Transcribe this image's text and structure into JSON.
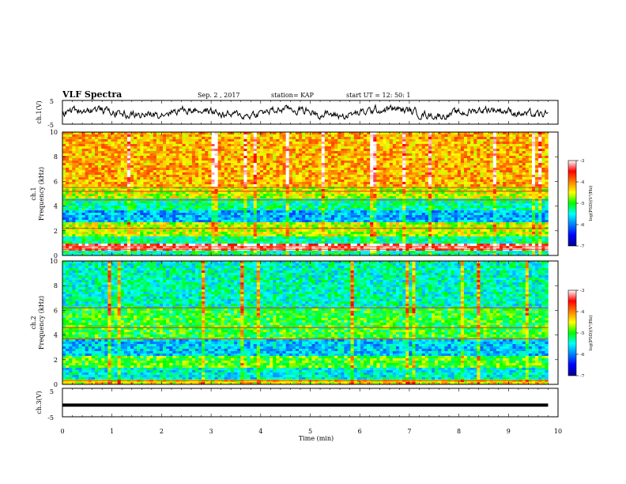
{
  "header": {
    "title": "VLF Spectra",
    "date": "Sep. 2 , 2017",
    "station": "station= KAP",
    "start": "start  UT =   12: 50: 1"
  },
  "chart_data": [
    {
      "type": "line",
      "panel": "ch1-waveform",
      "ylabel": "ch.1(V)",
      "ylim": [
        -5,
        5
      ],
      "yticks": [
        "5",
        "-5"
      ],
      "xlim": [
        0,
        10
      ],
      "series_color": "#000000",
      "description_values": "noisy waveform centred near 0 V, amplitude about ±2.5 V, ending at 9.8 min"
    },
    {
      "type": "heatmap",
      "panel": "ch1-spectrogram",
      "ylabel": "ch.1\nFrequency (kHz)",
      "ylabel_lines": [
        "ch.1",
        "Frequency  (kHz)"
      ],
      "ylim": [
        0,
        10
      ],
      "yticks": [
        "0",
        "2",
        "4",
        "6",
        "8",
        "10"
      ],
      "xlim": [
        0,
        10
      ],
      "data_end_min": 9.8,
      "band_levels": [
        {
          "f": [
            0,
            0.4
          ],
          "level": -5.3
        },
        {
          "f": [
            0.4,
            0.9
          ],
          "level": -3.3
        },
        {
          "f": [
            0.9,
            1.6
          ],
          "level": -5.3
        },
        {
          "f": [
            1.6,
            2.6
          ],
          "level": -4.6
        },
        {
          "f": [
            2.6,
            3.6
          ],
          "level": -5.8
        },
        {
          "f": [
            3.6,
            4.6
          ],
          "level": -5.3
        },
        {
          "f": [
            4.6,
            5.5
          ],
          "level": -4.6
        },
        {
          "f": [
            5.5,
            10
          ],
          "level": -4.2
        }
      ],
      "line_freqs_khz": [
        0.5,
        0.7,
        2.2,
        4.5,
        5.2,
        5.5
      ],
      "colorbar": {
        "label": "log(PSD)(V²/Hz)",
        "ticks": [
          "-3",
          "-4",
          "-5",
          "-6",
          "-7"
        ],
        "range": [
          -7,
          -3
        ]
      }
    },
    {
      "type": "heatmap",
      "panel": "ch2-spectrogram",
      "ylabel": "ch.2\nFrequency (kHz)",
      "ylabel_lines": [
        "ch.2",
        "Frequency  (kHz)"
      ],
      "ylim": [
        0,
        10
      ],
      "yticks": [
        "0",
        "2",
        "4",
        "6",
        "8",
        "10"
      ],
      "xlim": [
        0,
        10
      ],
      "data_end_min": 9.8,
      "band_levels": [
        {
          "f": [
            0,
            0.4
          ],
          "level": -4.4
        },
        {
          "f": [
            0.4,
            1.4
          ],
          "level": -5.5
        },
        {
          "f": [
            1.4,
            2.4
          ],
          "level": -4.9
        },
        {
          "f": [
            2.4,
            3.6
          ],
          "level": -5.7
        },
        {
          "f": [
            3.6,
            6.2
          ],
          "level": -5.0
        },
        {
          "f": [
            6.2,
            10
          ],
          "level": -5.4
        }
      ],
      "line_freqs_khz": [
        0.3,
        3.7,
        4.6,
        6.2
      ],
      "colorbar": {
        "label": "log(PSD)(V²/Hz)",
        "ticks": [
          "-3",
          "-4",
          "-5",
          "-6",
          "-7"
        ],
        "range": [
          -7,
          -3
        ]
      }
    },
    {
      "type": "line",
      "panel": "ch3-waveform",
      "ylabel": "ch.3(V)",
      "ylim": [
        -5,
        5
      ],
      "yticks": [
        "5",
        "-5"
      ],
      "xlim": [
        0,
        10
      ],
      "series": [
        {
          "x": [
            0,
            9.8
          ],
          "y": [
            -0.9,
            -0.9
          ]
        }
      ],
      "series_color": "#000000"
    }
  ],
  "xaxis": {
    "label": "Time (min)",
    "ticks": [
      "0",
      "1",
      "2",
      "3",
      "4",
      "5",
      "6",
      "7",
      "8",
      "9",
      "10"
    ],
    "range": [
      0,
      10
    ]
  }
}
